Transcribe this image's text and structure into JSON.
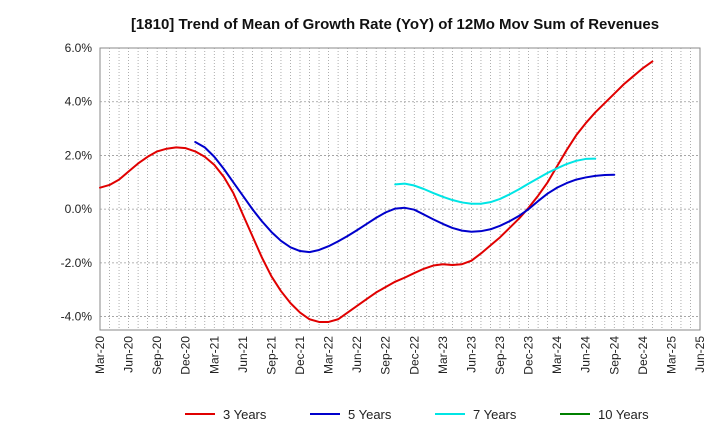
{
  "chart_data": {
    "type": "line",
    "title": "[1810]  Trend of Mean of Growth Rate (YoY) of 12Mo Mov Sum of Revenues",
    "xlabel": "",
    "ylabel": "",
    "ylim": [
      -4.5,
      6.0
    ],
    "y_ticks": [
      -4.0,
      -2.0,
      0.0,
      2.0,
      4.0,
      6.0
    ],
    "y_tick_labels": [
      "-4.0%",
      "-2.0%",
      "0.0%",
      "2.0%",
      "4.0%",
      "6.0%"
    ],
    "x_tick_labels": [
      "Mar-20",
      "Jun-20",
      "Sep-20",
      "Dec-20",
      "Mar-21",
      "Jun-21",
      "Sep-21",
      "Dec-21",
      "Mar-22",
      "Jun-22",
      "Sep-22",
      "Dec-22",
      "Mar-23",
      "Jun-23",
      "Sep-23",
      "Dec-23",
      "Mar-24",
      "Jun-24",
      "Sep-24",
      "Dec-24",
      "Mar-25",
      "Jun-25"
    ],
    "x_start": "Mar-20",
    "x_end": "Jun-25",
    "grid": true,
    "series": [
      {
        "name": "3 Years",
        "color": "#e00000",
        "x": [
          0,
          1,
          2,
          3,
          4,
          5,
          6,
          7,
          8,
          9,
          10,
          11,
          12,
          13,
          14,
          15,
          16,
          17,
          18,
          19,
          20,
          21,
          22,
          23,
          24,
          25,
          26,
          27,
          28,
          29,
          30,
          31,
          32,
          33,
          34,
          35,
          36,
          37,
          38,
          39,
          40,
          41,
          42,
          43,
          44,
          45,
          46,
          47,
          48,
          49,
          50,
          51,
          52,
          53,
          54,
          55,
          56,
          57,
          58,
          59,
          60
        ],
        "values": [
          0.8,
          0.9,
          1.1,
          1.4,
          1.7,
          1.95,
          2.15,
          2.25,
          2.3,
          2.27,
          2.15,
          1.95,
          1.65,
          1.2,
          0.6,
          -0.2,
          -1.0,
          -1.8,
          -2.5,
          -3.05,
          -3.5,
          -3.85,
          -4.1,
          -4.2,
          -4.2,
          -4.1,
          -3.85,
          -3.6,
          -3.35,
          -3.1,
          -2.9,
          -2.7,
          -2.55,
          -2.38,
          -2.22,
          -2.1,
          -2.05,
          -2.08,
          -2.05,
          -1.92,
          -1.65,
          -1.35,
          -1.05,
          -0.7,
          -0.35,
          0.05,
          0.5,
          1.0,
          1.6,
          2.2,
          2.75,
          3.2,
          3.6,
          3.95,
          4.3,
          4.65,
          4.95,
          5.25,
          5.5,
          null,
          null
        ]
      },
      {
        "name": "5 Years",
        "color": "#0000cc",
        "x": [
          0,
          1,
          2,
          3,
          4,
          5,
          6,
          7,
          8,
          9,
          10,
          11,
          12,
          13,
          14,
          15,
          16,
          17,
          18,
          19,
          20,
          21,
          22,
          23,
          24,
          25,
          26,
          27,
          28,
          29,
          30,
          31,
          32,
          33,
          34,
          35,
          36,
          37,
          38,
          39,
          40,
          41,
          42,
          43,
          44,
          45,
          46,
          47,
          48,
          49,
          50,
          51,
          52,
          53,
          54,
          55,
          56,
          57,
          58,
          59,
          60
        ],
        "values": [
          null,
          null,
          null,
          null,
          null,
          null,
          null,
          null,
          null,
          null,
          2.5,
          2.3,
          1.95,
          1.5,
          1.0,
          0.5,
          0.0,
          -0.45,
          -0.85,
          -1.18,
          -1.42,
          -1.56,
          -1.6,
          -1.52,
          -1.38,
          -1.2,
          -1.0,
          -0.78,
          -0.55,
          -0.32,
          -0.12,
          0.02,
          0.05,
          -0.02,
          -0.2,
          -0.38,
          -0.55,
          -0.7,
          -0.8,
          -0.84,
          -0.82,
          -0.75,
          -0.62,
          -0.45,
          -0.25,
          0.0,
          0.3,
          0.58,
          0.8,
          0.97,
          1.1,
          1.18,
          1.24,
          1.27,
          1.28,
          null,
          null,
          null,
          null,
          null,
          null
        ]
      },
      {
        "name": "7 Years",
        "color": "#00e5e5",
        "x": [
          0,
          1,
          2,
          3,
          4,
          5,
          6,
          7,
          8,
          9,
          10,
          11,
          12,
          13,
          14,
          15,
          16,
          17,
          18,
          19,
          20,
          21,
          22,
          23,
          24,
          25,
          26,
          27,
          28,
          29,
          30,
          31,
          32,
          33,
          34,
          35,
          36,
          37,
          38,
          39,
          40,
          41,
          42,
          43,
          44,
          45,
          46,
          47,
          48,
          49,
          50,
          51,
          52,
          53,
          54,
          55,
          56,
          57,
          58,
          59,
          60
        ],
        "values": [
          null,
          null,
          null,
          null,
          null,
          null,
          null,
          null,
          null,
          null,
          null,
          null,
          null,
          null,
          null,
          null,
          null,
          null,
          null,
          null,
          null,
          null,
          null,
          null,
          null,
          null,
          null,
          null,
          null,
          null,
          null,
          0.92,
          0.95,
          0.88,
          0.75,
          0.6,
          0.46,
          0.34,
          0.25,
          0.2,
          0.2,
          0.26,
          0.38,
          0.55,
          0.74,
          0.95,
          1.15,
          1.35,
          1.52,
          1.68,
          1.8,
          1.87,
          1.88,
          null,
          null,
          null,
          null,
          null,
          null,
          null,
          null
        ]
      },
      {
        "name": "10 Years",
        "color": "#008000",
        "x": [],
        "values": []
      }
    ]
  }
}
